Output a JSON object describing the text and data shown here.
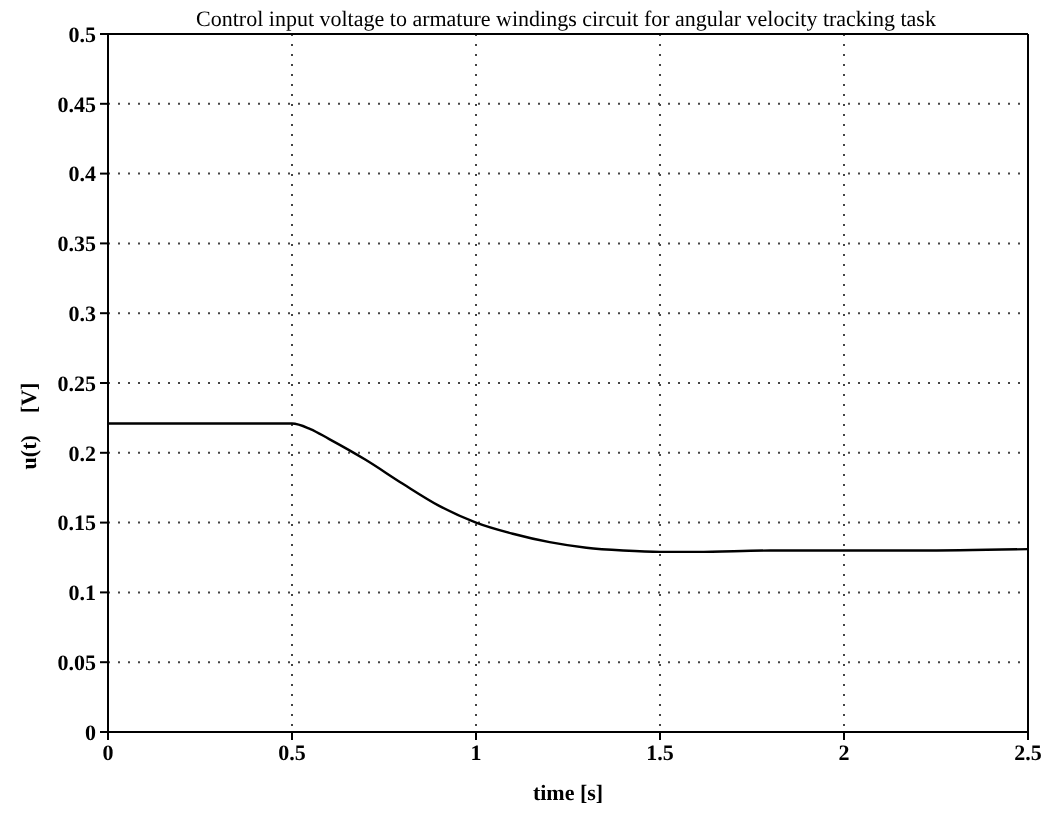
{
  "chart_data": {
    "type": "line",
    "title": "Control input voltage to armature windings circuit for angular velocity tracking task",
    "xlabel": "time [s]",
    "ylabel": "u(t)    [V]",
    "x": [
      0,
      0.1,
      0.2,
      0.3,
      0.4,
      0.5,
      0.55,
      0.6,
      0.7,
      0.8,
      0.9,
      1.0,
      1.1,
      1.2,
      1.3,
      1.4,
      1.5,
      1.6,
      1.8,
      2.0,
      2.2,
      2.5
    ],
    "series": [
      {
        "color": "#000000",
        "values": [
          0.221,
          0.221,
          0.221,
          0.221,
          0.221,
          0.221,
          0.217,
          0.21,
          0.195,
          0.178,
          0.162,
          0.15,
          0.142,
          0.136,
          0.132,
          0.13,
          0.129,
          0.129,
          0.13,
          0.13,
          0.13,
          0.131
        ]
      }
    ],
    "xlim": [
      0,
      2.5
    ],
    "xticks": [
      0,
      0.5,
      1,
      1.5,
      2,
      2.5
    ],
    "ylim": [
      0,
      0.5
    ],
    "yticks": [
      0,
      0.05,
      0.1,
      0.15,
      0.2,
      0.25,
      0.3,
      0.35,
      0.4,
      0.45,
      0.5
    ],
    "grid": true,
    "legend": false,
    "marker": "none",
    "line_style": "solid"
  }
}
